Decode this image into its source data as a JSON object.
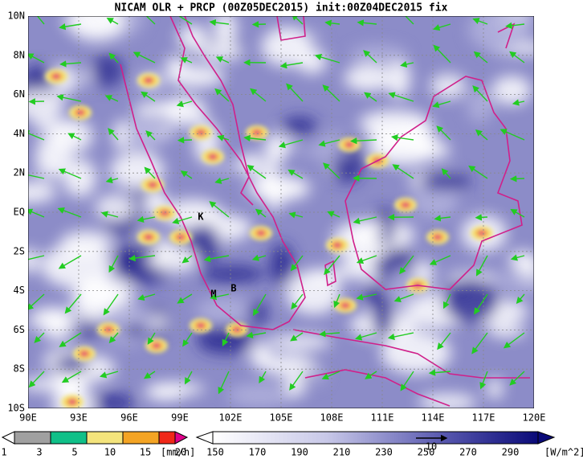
{
  "title": "NICAM OLR + PRCP (00Z05DEC2015) init:00Z04DEC2015 fix",
  "map": {
    "x_labels": [
      "90E",
      "93E",
      "96E",
      "99E",
      "102E",
      "105E",
      "108E",
      "111E",
      "114E",
      "117E",
      "120E"
    ],
    "y_labels": [
      "10N",
      "8N",
      "6N",
      "4N",
      "2N",
      "EQ",
      "2S",
      "4S",
      "6S",
      "8S",
      "10S"
    ],
    "markers": [
      "K",
      "M",
      "B"
    ]
  },
  "precip_legend": {
    "labels": [
      "1",
      "3",
      "5",
      "10",
      "15",
      "20"
    ],
    "unit": "[mm/h]"
  },
  "olr_legend": {
    "labels": [
      "150",
      "170",
      "190",
      "210",
      "230",
      "250",
      "270",
      "290"
    ],
    "unit": "[W/m^2]"
  },
  "vector_reference": "10"
}
